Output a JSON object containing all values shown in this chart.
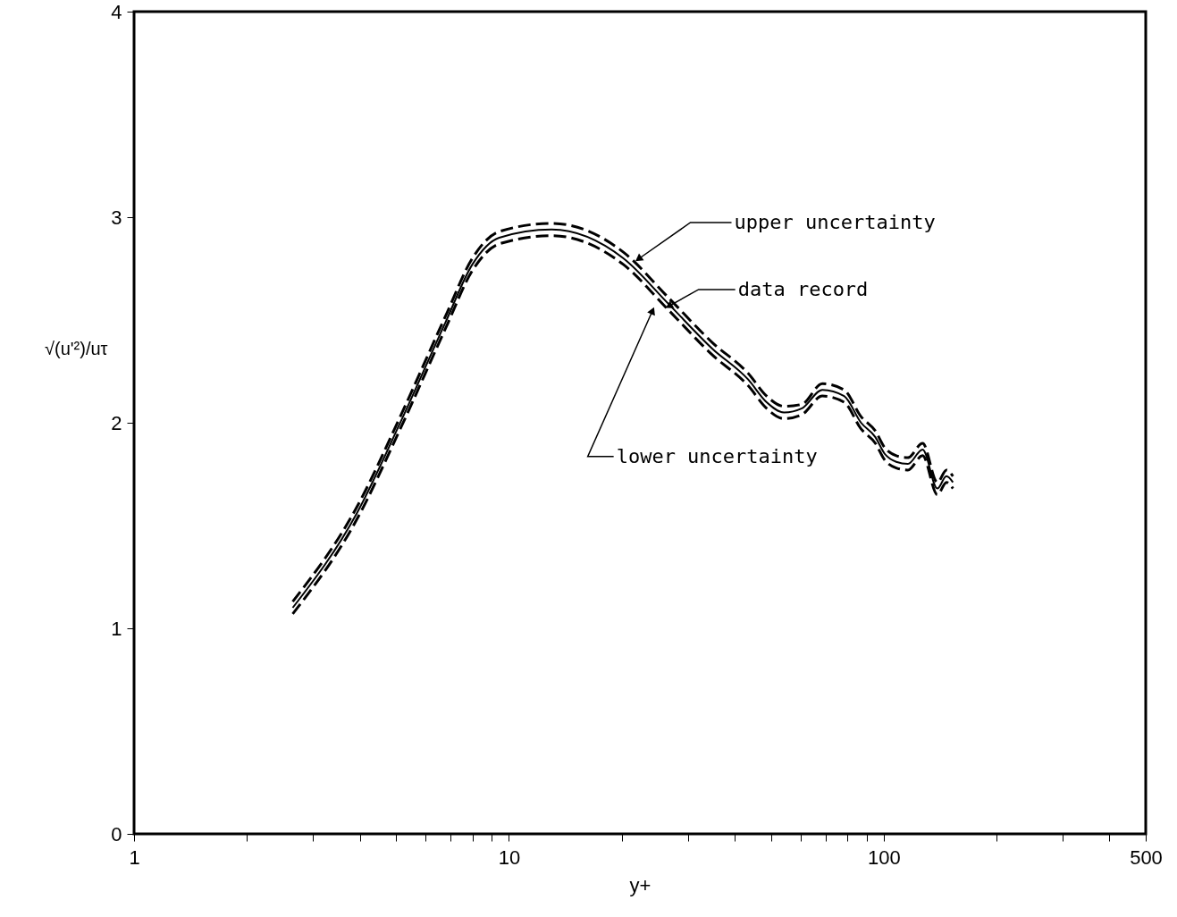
{
  "chart_data": {
    "type": "line",
    "xlabel": "y+",
    "ylabel": "√(u'²)/uτ",
    "xlim": [
      1,
      500
    ],
    "ylim": [
      0,
      4
    ],
    "log": "x",
    "grid": false,
    "xticks": [
      1,
      {
        "value": 2,
        "label": null
      },
      {
        "value": 3,
        "label": null
      },
      {
        "value": 4,
        "label": null
      },
      {
        "value": 5,
        "label": null
      },
      {
        "value": 6,
        "label": null
      },
      {
        "value": 7,
        "label": null
      },
      {
        "value": 8,
        "label": null
      },
      {
        "value": 9,
        "label": null
      },
      10,
      {
        "value": 20,
        "label": null
      },
      {
        "value": 30,
        "label": null
      },
      {
        "value": 40,
        "label": null
      },
      {
        "value": 50,
        "label": null
      },
      {
        "value": 60,
        "label": null
      },
      {
        "value": 70,
        "label": null
      },
      {
        "value": 80,
        "label": null
      },
      {
        "value": 90,
        "label": null
      },
      100,
      {
        "value": 200,
        "label": null
      },
      {
        "value": 300,
        "label": null
      },
      {
        "value": 400,
        "label": null
      },
      500
    ],
    "yticks": [
      0,
      1,
      2,
      3,
      4
    ],
    "x": [
      2.65,
      3.93,
      5.16,
      6.78,
      7.99,
      9.42,
      13.0,
      20.2,
      26.6,
      34.9,
      43.5,
      48.7,
      54.2,
      60.5,
      68.6,
      78.4,
      87.0,
      95.0,
      100.5,
      108,
      116,
      127,
      139,
      147,
      153
    ],
    "series": [
      {
        "color": "#000000",
        "line_style": "dashed",
        "values": [
          1.13,
          1.59,
          2.04,
          2.52,
          2.8,
          2.93,
          2.97,
          2.83,
          2.61,
          2.39,
          2.24,
          2.13,
          2.08,
          2.09,
          2.19,
          2.16,
          2.03,
          1.96,
          1.88,
          1.84,
          1.83,
          1.9,
          1.71,
          1.77,
          1.74
        ]
      },
      {
        "color": "#000000",
        "line_style": "solid",
        "values": [
          1.1,
          1.56,
          2.01,
          2.49,
          2.77,
          2.9,
          2.94,
          2.8,
          2.58,
          2.36,
          2.21,
          2.1,
          2.05,
          2.07,
          2.16,
          2.13,
          2.0,
          1.93,
          1.85,
          1.81,
          1.8,
          1.87,
          1.68,
          1.74,
          1.71
        ]
      },
      {
        "color": "#000000",
        "line_style": "dashed",
        "values": [
          1.07,
          1.53,
          1.98,
          2.46,
          2.74,
          2.87,
          2.91,
          2.77,
          2.55,
          2.33,
          2.18,
          2.07,
          2.02,
          2.04,
          2.13,
          2.1,
          1.97,
          1.9,
          1.82,
          1.78,
          1.77,
          1.84,
          1.65,
          1.71,
          1.68
        ]
      }
    ],
    "annotations": [
      {
        "text": "upper uncertainty",
        "x": 22.3,
        "y": 2.8
      },
      {
        "text": "data record",
        "x": 26.9,
        "y": 2.57
      },
      {
        "text": "lower uncertainty",
        "x": 24.1,
        "y": 2.54
      }
    ]
  }
}
